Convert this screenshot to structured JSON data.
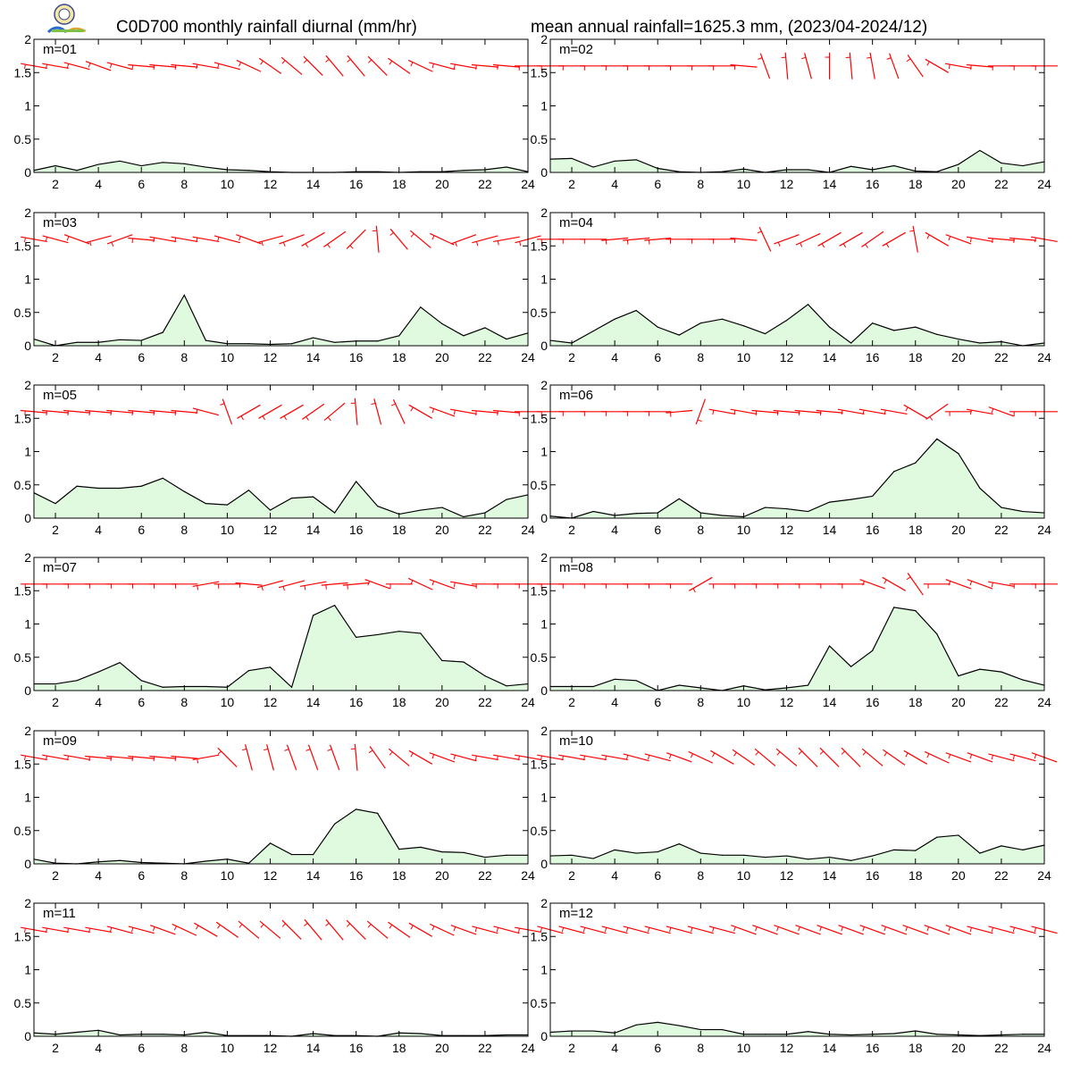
{
  "title_left": "C0D700 monthly rainfall diurnal (mm/hr)",
  "title_right": "mean annual rainfall=1625.3 mm, (2023/04-2024/12)",
  "colors": {
    "fill": "#e0fae0",
    "line": "#000000",
    "wind": "#ff0000"
  },
  "chart_data": [
    {
      "type": "area",
      "label": "m=01",
      "x": [
        1,
        2,
        3,
        4,
        5,
        6,
        7,
        8,
        9,
        10,
        11,
        12,
        13,
        14,
        15,
        16,
        17,
        18,
        19,
        20,
        21,
        22,
        23,
        24
      ],
      "values": [
        0.03,
        0.1,
        0.03,
        0.12,
        0.17,
        0.1,
        0.15,
        0.13,
        0.08,
        0.04,
        0.03,
        0.01,
        0.0,
        0.0,
        0.0,
        0.01,
        0.01,
        0.0,
        0.01,
        0.01,
        0.03,
        0.04,
        0.08,
        0.01
      ],
      "xlim": [
        1,
        24
      ],
      "ylim": [
        0,
        2
      ],
      "xticks": [
        2,
        4,
        6,
        8,
        10,
        12,
        14,
        16,
        18,
        20,
        22,
        24
      ],
      "yticks": [
        0,
        0.5,
        1,
        1.5,
        2
      ],
      "wind_deg": [
        100,
        100,
        105,
        110,
        105,
        95,
        95,
        95,
        100,
        105,
        115,
        125,
        130,
        135,
        140,
        140,
        135,
        125,
        115,
        105,
        100,
        95,
        95,
        90
      ]
    },
    {
      "type": "area",
      "label": "m=02",
      "x": [
        1,
        2,
        3,
        4,
        5,
        6,
        7,
        8,
        9,
        10,
        11,
        12,
        13,
        14,
        15,
        16,
        17,
        18,
        19,
        20,
        21,
        22,
        23,
        24
      ],
      "values": [
        0.2,
        0.21,
        0.08,
        0.17,
        0.19,
        0.06,
        0.01,
        0.0,
        0.01,
        0.05,
        0.0,
        0.04,
        0.04,
        0.0,
        0.09,
        0.04,
        0.1,
        0.02,
        0.01,
        0.12,
        0.33,
        0.14,
        0.1,
        0.16
      ],
      "xlim": [
        1,
        24
      ],
      "ylim": [
        0,
        2
      ],
      "xticks": [
        2,
        4,
        6,
        8,
        10,
        12,
        14,
        16,
        18,
        20,
        22,
        24
      ],
      "yticks": [
        0,
        0.5,
        1,
        1.5,
        2
      ],
      "wind_deg": [
        90,
        90,
        90,
        90,
        90,
        90,
        90,
        90,
        90,
        95,
        160,
        175,
        165,
        180,
        175,
        170,
        160,
        145,
        120,
        100,
        95,
        90,
        90,
        90
      ]
    },
    {
      "type": "area",
      "label": "m=03",
      "x": [
        1,
        2,
        3,
        4,
        5,
        6,
        7,
        8,
        9,
        10,
        11,
        12,
        13,
        14,
        15,
        16,
        17,
        18,
        19,
        20,
        21,
        22,
        23,
        24
      ],
      "values": [
        0.1,
        0.0,
        0.05,
        0.05,
        0.09,
        0.08,
        0.2,
        0.76,
        0.08,
        0.03,
        0.03,
        0.02,
        0.03,
        0.12,
        0.05,
        0.07,
        0.07,
        0.15,
        0.58,
        0.33,
        0.15,
        0.27,
        0.1,
        0.19
      ],
      "xlim": [
        1,
        24
      ],
      "ylim": [
        0,
        2
      ],
      "xticks": [
        2,
        4,
        6,
        8,
        10,
        12,
        14,
        16,
        18,
        20,
        22,
        24
      ],
      "yticks": [
        0,
        0.5,
        1,
        1.5,
        2
      ],
      "wind_deg": [
        100,
        105,
        110,
        75,
        70,
        95,
        100,
        100,
        100,
        105,
        110,
        75,
        70,
        60,
        55,
        45,
        175,
        140,
        130,
        115,
        70,
        75,
        80,
        75
      ]
    },
    {
      "type": "area",
      "label": "m=04",
      "x": [
        1,
        2,
        3,
        4,
        5,
        6,
        7,
        8,
        9,
        10,
        11,
        12,
        13,
        14,
        15,
        16,
        17,
        18,
        19,
        20,
        21,
        22,
        23,
        24
      ],
      "values": [
        0.08,
        0.04,
        0.22,
        0.4,
        0.53,
        0.28,
        0.16,
        0.34,
        0.4,
        0.3,
        0.18,
        0.38,
        0.62,
        0.28,
        0.04,
        0.34,
        0.23,
        0.28,
        0.17,
        0.1,
        0.04,
        0.06,
        0.0,
        0.04
      ],
      "xlim": [
        1,
        24
      ],
      "ylim": [
        0,
        2
      ],
      "xticks": [
        2,
        4,
        6,
        8,
        10,
        12,
        14,
        16,
        18,
        20,
        22,
        24
      ],
      "yticks": [
        0,
        0.5,
        1,
        1.5,
        2
      ],
      "wind_deg": [
        90,
        90,
        90,
        85,
        85,
        85,
        90,
        90,
        90,
        95,
        155,
        70,
        65,
        60,
        60,
        55,
        60,
        170,
        120,
        110,
        100,
        95,
        95,
        100
      ]
    },
    {
      "type": "area",
      "label": "m=05",
      "x": [
        1,
        2,
        3,
        4,
        5,
        6,
        7,
        8,
        9,
        10,
        11,
        12,
        13,
        14,
        15,
        16,
        17,
        18,
        19,
        20,
        21,
        22,
        23,
        24
      ],
      "values": [
        0.38,
        0.22,
        0.48,
        0.45,
        0.45,
        0.48,
        0.6,
        0.4,
        0.22,
        0.2,
        0.42,
        0.12,
        0.3,
        0.32,
        0.08,
        0.55,
        0.18,
        0.06,
        0.12,
        0.16,
        0.02,
        0.08,
        0.28,
        0.35
      ],
      "xlim": [
        1,
        24
      ],
      "ylim": [
        0,
        2
      ],
      "xticks": [
        2,
        4,
        6,
        8,
        10,
        12,
        14,
        16,
        18,
        20,
        22,
        24
      ],
      "yticks": [
        0,
        0.5,
        1,
        1.5,
        2
      ],
      "wind_deg": [
        95,
        95,
        95,
        95,
        95,
        95,
        95,
        95,
        105,
        160,
        60,
        60,
        60,
        55,
        50,
        175,
        165,
        155,
        120,
        110,
        100,
        95,
        95,
        90
      ]
    },
    {
      "type": "area",
      "label": "m=06",
      "x": [
        1,
        2,
        3,
        4,
        5,
        6,
        7,
        8,
        9,
        10,
        11,
        12,
        13,
        14,
        15,
        16,
        17,
        18,
        19,
        20,
        21,
        22,
        23,
        24
      ],
      "values": [
        0.03,
        0.0,
        0.1,
        0.04,
        0.07,
        0.08,
        0.29,
        0.08,
        0.04,
        0.02,
        0.16,
        0.14,
        0.1,
        0.24,
        0.28,
        0.33,
        0.7,
        0.83,
        1.19,
        0.97,
        0.45,
        0.16,
        0.1,
        0.08
      ],
      "xlim": [
        1,
        24
      ],
      "ylim": [
        0,
        2
      ],
      "xticks": [
        2,
        4,
        6,
        8,
        10,
        12,
        14,
        16,
        18,
        20,
        22,
        24
      ],
      "yticks": [
        0,
        0.5,
        1,
        1.5,
        2
      ],
      "wind_deg": [
        90,
        90,
        90,
        90,
        90,
        90,
        85,
        20,
        100,
        100,
        95,
        95,
        95,
        95,
        100,
        100,
        100,
        120,
        55,
        90,
        100,
        110,
        90,
        90
      ]
    },
    {
      "type": "area",
      "label": "m=07",
      "x": [
        1,
        2,
        3,
        4,
        5,
        6,
        7,
        8,
        9,
        10,
        11,
        12,
        13,
        14,
        15,
        16,
        17,
        18,
        19,
        20,
        21,
        22,
        23,
        24
      ],
      "values": [
        0.1,
        0.1,
        0.15,
        0.28,
        0.42,
        0.15,
        0.05,
        0.06,
        0.06,
        0.05,
        0.3,
        0.35,
        0.05,
        1.13,
        1.28,
        0.8,
        0.84,
        0.89,
        0.86,
        0.45,
        0.43,
        0.22,
        0.07,
        0.1
      ],
      "xlim": [
        1,
        24
      ],
      "ylim": [
        0,
        2
      ],
      "xticks": [
        2,
        4,
        6,
        8,
        10,
        12,
        14,
        16,
        18,
        20,
        22,
        24
      ],
      "yticks": [
        0,
        0.5,
        1,
        1.5,
        2
      ],
      "wind_deg": [
        90,
        90,
        90,
        90,
        90,
        90,
        90,
        90,
        80,
        90,
        95,
        75,
        75,
        80,
        85,
        85,
        110,
        90,
        115,
        110,
        100,
        90,
        90,
        90
      ]
    },
    {
      "type": "area",
      "label": "m=08",
      "x": [
        1,
        2,
        3,
        4,
        5,
        6,
        7,
        8,
        9,
        10,
        11,
        12,
        13,
        14,
        15,
        16,
        17,
        18,
        19,
        20,
        21,
        22,
        23,
        24
      ],
      "values": [
        0.06,
        0.06,
        0.06,
        0.17,
        0.15,
        0.0,
        0.08,
        0.04,
        0.0,
        0.07,
        0.01,
        0.04,
        0.08,
        0.67,
        0.36,
        0.6,
        1.25,
        1.2,
        0.85,
        0.22,
        0.32,
        0.28,
        0.16,
        0.08
      ],
      "xlim": [
        1,
        24
      ],
      "ylim": [
        0,
        2
      ],
      "xticks": [
        2,
        4,
        6,
        8,
        10,
        12,
        14,
        16,
        18,
        20,
        22,
        24
      ],
      "yticks": [
        0,
        0.5,
        1,
        1.5,
        2
      ],
      "wind_deg": [
        90,
        90,
        90,
        90,
        90,
        90,
        90,
        60,
        90,
        90,
        90,
        90,
        90,
        90,
        90,
        110,
        120,
        145,
        90,
        110,
        110,
        100,
        90,
        90
      ]
    },
    {
      "type": "area",
      "label": "m=09",
      "x": [
        1,
        2,
        3,
        4,
        5,
        6,
        7,
        8,
        9,
        10,
        11,
        12,
        13,
        14,
        15,
        16,
        17,
        18,
        19,
        20,
        21,
        22,
        23,
        24
      ],
      "values": [
        0.07,
        0.01,
        0.0,
        0.03,
        0.05,
        0.02,
        0.01,
        0.0,
        0.04,
        0.07,
        0.01,
        0.31,
        0.14,
        0.14,
        0.6,
        0.82,
        0.76,
        0.22,
        0.25,
        0.18,
        0.17,
        0.1,
        0.13,
        0.13
      ],
      "xlim": [
        1,
        24
      ],
      "ylim": [
        0,
        2
      ],
      "xticks": [
        2,
        4,
        6,
        8,
        10,
        12,
        14,
        16,
        18,
        20,
        22,
        24
      ],
      "yticks": [
        0,
        0.5,
        1,
        1.5,
        2
      ],
      "wind_deg": [
        100,
        100,
        100,
        95,
        95,
        95,
        95,
        95,
        80,
        135,
        165,
        165,
        160,
        160,
        160,
        175,
        145,
        130,
        120,
        110,
        105,
        100,
        100,
        100
      ]
    },
    {
      "type": "area",
      "label": "m=10",
      "x": [
        1,
        2,
        3,
        4,
        5,
        6,
        7,
        8,
        9,
        10,
        11,
        12,
        13,
        14,
        15,
        16,
        17,
        18,
        19,
        20,
        21,
        22,
        23,
        24
      ],
      "values": [
        0.12,
        0.13,
        0.08,
        0.21,
        0.16,
        0.18,
        0.3,
        0.16,
        0.13,
        0.13,
        0.1,
        0.12,
        0.07,
        0.1,
        0.05,
        0.12,
        0.21,
        0.2,
        0.4,
        0.43,
        0.16,
        0.27,
        0.21,
        0.28
      ],
      "xlim": [
        1,
        24
      ],
      "ylim": [
        0,
        2
      ],
      "xticks": [
        2,
        4,
        6,
        8,
        10,
        12,
        14,
        16,
        18,
        20,
        22,
        24
      ],
      "yticks": [
        0,
        0.5,
        1,
        1.5,
        2
      ],
      "wind_deg": [
        100,
        100,
        100,
        100,
        105,
        105,
        110,
        115,
        120,
        125,
        130,
        130,
        135,
        135,
        135,
        130,
        125,
        120,
        115,
        110,
        110,
        105,
        105,
        110
      ]
    },
    {
      "type": "area",
      "label": "m=11",
      "x": [
        1,
        2,
        3,
        4,
        5,
        6,
        7,
        8,
        9,
        10,
        11,
        12,
        13,
        14,
        15,
        16,
        17,
        18,
        19,
        20,
        21,
        22,
        23,
        24
      ],
      "values": [
        0.05,
        0.03,
        0.06,
        0.09,
        0.02,
        0.03,
        0.03,
        0.02,
        0.06,
        0.01,
        0.01,
        0.01,
        0.0,
        0.04,
        0.01,
        0.01,
        0.0,
        0.05,
        0.04,
        0.01,
        0.01,
        0.01,
        0.02,
        0.02
      ],
      "xlim": [
        1,
        24
      ],
      "ylim": [
        0,
        2
      ],
      "xticks": [
        2,
        4,
        6,
        8,
        10,
        12,
        14,
        16,
        18,
        20,
        22,
        24
      ],
      "yticks": [
        0,
        0.5,
        1,
        1.5,
        2
      ],
      "wind_deg": [
        100,
        100,
        100,
        100,
        105,
        105,
        110,
        115,
        120,
        125,
        130,
        130,
        135,
        140,
        140,
        135,
        130,
        125,
        120,
        115,
        110,
        105,
        105,
        100
      ]
    },
    {
      "type": "area",
      "label": "m=12",
      "x": [
        1,
        2,
        3,
        4,
        5,
        6,
        7,
        8,
        9,
        10,
        11,
        12,
        13,
        14,
        15,
        16,
        17,
        18,
        19,
        20,
        21,
        22,
        23,
        24
      ],
      "values": [
        0.06,
        0.08,
        0.08,
        0.05,
        0.17,
        0.21,
        0.16,
        0.1,
        0.1,
        0.03,
        0.03,
        0.03,
        0.07,
        0.03,
        0.02,
        0.03,
        0.04,
        0.08,
        0.03,
        0.02,
        0.01,
        0.02,
        0.03,
        0.03
      ],
      "xlim": [
        1,
        24
      ],
      "ylim": [
        0,
        2
      ],
      "xticks": [
        2,
        4,
        6,
        8,
        10,
        12,
        14,
        16,
        18,
        20,
        22,
        24
      ],
      "yticks": [
        0,
        0.5,
        1,
        1.5,
        2
      ],
      "wind_deg": [
        105,
        105,
        105,
        105,
        105,
        105,
        105,
        105,
        105,
        110,
        110,
        110,
        110,
        110,
        110,
        110,
        110,
        110,
        110,
        110,
        105,
        105,
        105,
        105
      ]
    }
  ]
}
